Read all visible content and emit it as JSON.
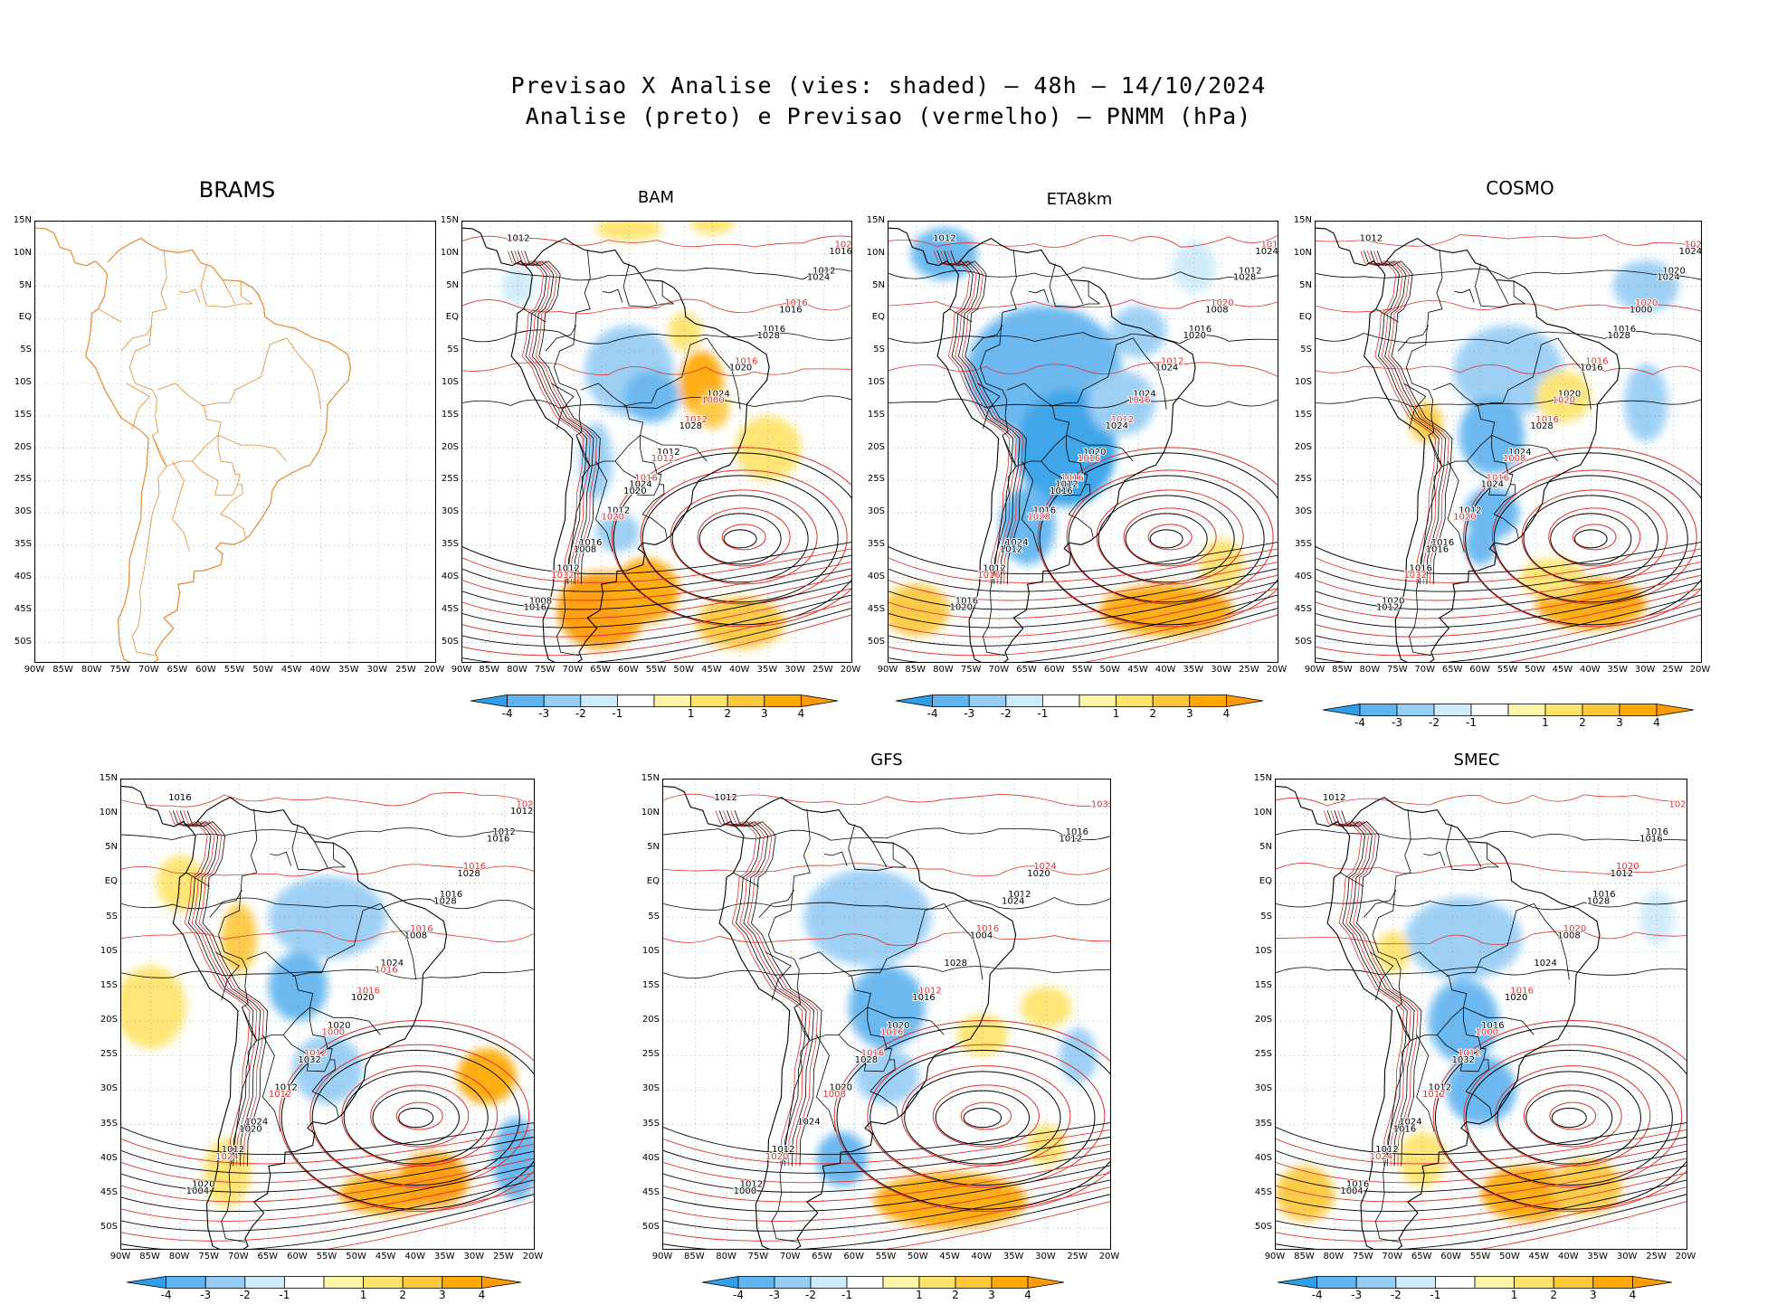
{
  "figure": {
    "title_line1": "Previsao X Analise (vies: shaded) – 48h – 14/10/2024",
    "title_line2": "Analise (preto) e Previsao (vermelho) – PNMM (hPa)"
  },
  "axes": {
    "lat_labels": [
      "15N",
      "10N",
      "5N",
      "EQ",
      "5S",
      "10S",
      "15S",
      "20S",
      "25S",
      "30S",
      "35S",
      "40S",
      "45S",
      "50S"
    ],
    "lon_labels": [
      "90W",
      "85W",
      "80W",
      "75W",
      "70W",
      "65W",
      "60W",
      "55W",
      "50W",
      "45W",
      "40W",
      "35W",
      "30W",
      "25W",
      "20W"
    ],
    "lat_range": [
      15,
      -53
    ],
    "lon_range": [
      -90,
      -20
    ]
  },
  "colorbar": {
    "labels": [
      "-4",
      "-3",
      "-2",
      "-1",
      "1",
      "2",
      "3",
      "4"
    ],
    "colors": [
      "#2f9fe8",
      "#60b4f0",
      "#96cdf6",
      "#cdebfb",
      "#ffffff",
      "#fff5a8",
      "#ffe36a",
      "#ffc83a",
      "#ffa800",
      "#ff9a00"
    ]
  },
  "contour_colors": {
    "analysis": "#000000",
    "forecast": "#e0302a",
    "map_outline": "#e08a30"
  },
  "panels": [
    {
      "id": "brams",
      "name": "BRAMS",
      "labels": []
    },
    {
      "id": "bam",
      "name": "BAM",
      "labels": [
        "1012",
        "1016",
        "1016",
        "1012",
        "1012",
        "1012",
        "1012",
        "1016",
        "1008",
        "1012",
        "1016",
        "1016",
        "1024",
        "1024",
        "1024",
        "1028",
        "1032",
        "1028",
        "1024",
        "1020",
        "1020",
        "1016",
        "1012",
        "1016",
        "1008",
        "1000",
        "1016",
        "1020"
      ]
    },
    {
      "id": "eta8km",
      "name": "ETA8km",
      "labels": [
        "1012",
        "1016",
        "1016",
        "1012",
        "1012",
        "1012",
        "1016",
        "1012",
        "1016",
        "1020",
        "1020",
        "1024",
        "1024",
        "1016",
        "1012",
        "1020",
        "1016",
        "1024",
        "1028",
        "1028",
        "1024",
        "1020",
        "1016",
        "1008",
        "1012",
        "1016",
        "1024",
        "1016"
      ]
    },
    {
      "id": "cosmo",
      "name": "COSMO",
      "labels": [
        "1012",
        "1016",
        "1016",
        "1016",
        "1016",
        "1020",
        "1012",
        "1016",
        "1020",
        "1024",
        "1020",
        "1016",
        "1020",
        "1024",
        "1024",
        "1028",
        "1032",
        "1028",
        "1024",
        "1020",
        "1016",
        "1012",
        "1008",
        "1000",
        "1016",
        "1020",
        "1024"
      ]
    },
    {
      "id": "panel5",
      "name": "",
      "labels": [
        "1016",
        "1012",
        "1016",
        "1012",
        "1016",
        "1012",
        "1012",
        "1016",
        "1020",
        "1020",
        "1016",
        "1024",
        "1024",
        "1028",
        "1032",
        "1028",
        "1024",
        "1020",
        "1016",
        "1012",
        "1008",
        "1004",
        "1000",
        "1028",
        "1020",
        "1016",
        "1012"
      ]
    },
    {
      "id": "gfs",
      "name": "GFS",
      "labels": [
        "1012",
        "1016",
        "1012",
        "1012",
        "1012",
        "1016",
        "1020",
        "1016",
        "1012",
        "1020",
        "1024",
        "1024",
        "1028",
        "1032",
        "1028",
        "1024",
        "1020",
        "1016",
        "1012",
        "1008",
        "1004",
        "1000",
        "1016",
        "1020"
      ]
    },
    {
      "id": "smec",
      "name": "SMEC",
      "labels": [
        "1012",
        "1012",
        "1016",
        "1012",
        "1016",
        "1016",
        "1012",
        "1020",
        "1016",
        "1016",
        "1020",
        "1024",
        "1024",
        "1028",
        "1032",
        "1028",
        "1024",
        "1020",
        "1016",
        "1012",
        "1008",
        "1004",
        "1000",
        "1012",
        "1016"
      ]
    }
  ]
}
